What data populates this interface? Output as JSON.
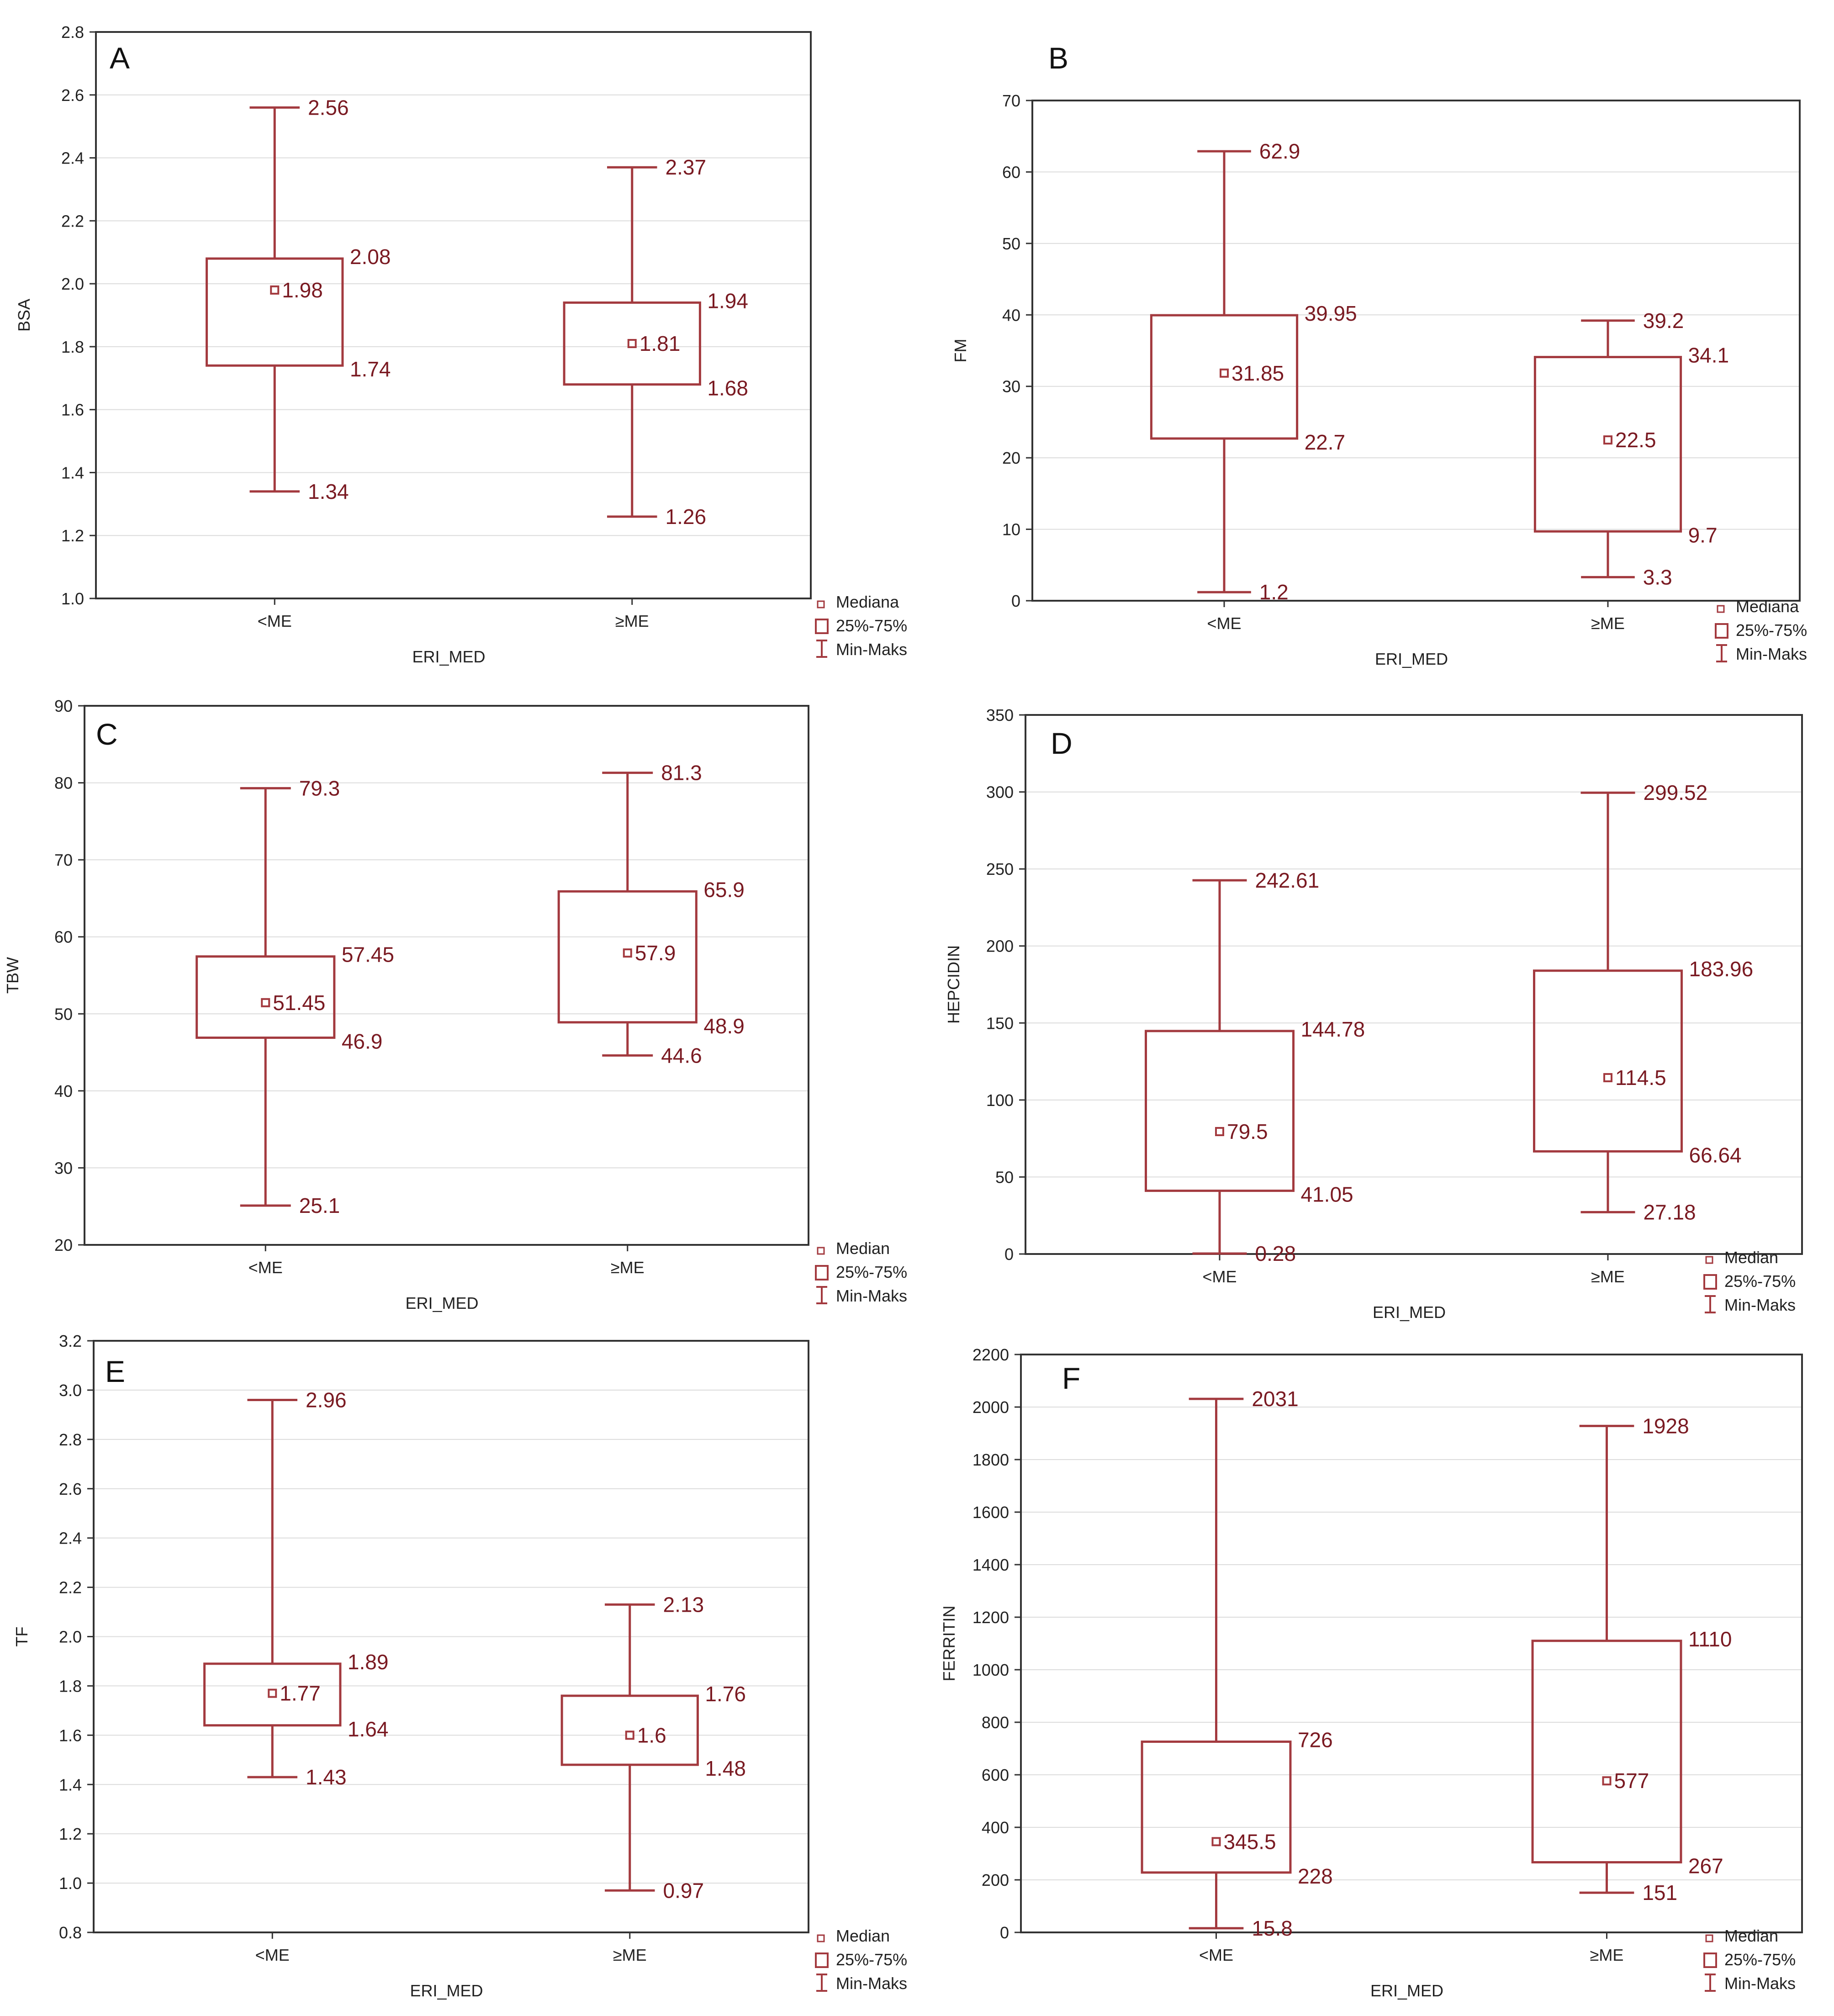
{
  "colors": {
    "box": "#a33a3f",
    "label": "#7a1a22",
    "grid": "#dcdcdc",
    "frame": "#333333"
  },
  "chart_data": [
    {
      "type": "box",
      "panel": "A",
      "xlabel": "ERI_MED",
      "ylabel": "BSA",
      "ylim": [
        1.0,
        2.8
      ],
      "yticks": [
        "1.0",
        "1.2",
        "1.4",
        "1.6",
        "1.8",
        "2.0",
        "2.2",
        "2.4",
        "2.6",
        "2.8"
      ],
      "categories": [
        "<ME",
        "≥ME"
      ],
      "boxes": [
        {
          "min": 1.34,
          "q1": 1.74,
          "median": 1.98,
          "q3": 2.08,
          "max": 2.56,
          "labels": {
            "min": "1.34",
            "q1": "1.74",
            "median": "1.98",
            "q3": "2.08",
            "max": "2.56"
          }
        },
        {
          "min": 1.26,
          "q1": 1.68,
          "median": 1.81,
          "q3": 1.94,
          "max": 2.37,
          "labels": {
            "min": "1.26",
            "q1": "1.68",
            "median": "1.81",
            "q3": "1.94",
            "max": "2.37"
          }
        }
      ],
      "legend": [
        "Mediana",
        "25%-75%",
        "Min-Maks"
      ]
    },
    {
      "type": "box",
      "panel": "B",
      "xlabel": "ERI_MED",
      "ylabel": "FM",
      "ylim": [
        0,
        70
      ],
      "yticks": [
        "0",
        "10",
        "20",
        "30",
        "40",
        "50",
        "60",
        "70"
      ],
      "categories": [
        "<ME",
        "≥ME"
      ],
      "boxes": [
        {
          "min": 1.2,
          "q1": 22.7,
          "median": 31.85,
          "q3": 39.95,
          "max": 62.9,
          "labels": {
            "min": "1.2",
            "q1": "22.7",
            "median": "31.85",
            "q3": "39.95",
            "max": "62.9"
          }
        },
        {
          "min": 3.3,
          "q1": 9.7,
          "median": 22.5,
          "q3": 34.1,
          "max": 39.2,
          "labels": {
            "min": "3.3",
            "q1": "9.7",
            "median": "22.5",
            "q3": "34.1",
            "max": "39.2"
          }
        }
      ],
      "legend": [
        "Mediana",
        "25%-75%",
        "Min-Maks"
      ]
    },
    {
      "type": "box",
      "panel": "C",
      "xlabel": "ERI_MED",
      "ylabel": "TBW",
      "ylim": [
        20,
        90
      ],
      "yticks": [
        "20",
        "30",
        "40",
        "50",
        "60",
        "70",
        "80",
        "90"
      ],
      "categories": [
        "<ME",
        "≥ME"
      ],
      "boxes": [
        {
          "min": 25.1,
          "q1": 46.9,
          "median": 51.45,
          "q3": 57.45,
          "max": 79.3,
          "labels": {
            "min": "25.1",
            "q1": "46.9",
            "median": "51.45",
            "q3": "57.45",
            "max": "79.3"
          }
        },
        {
          "min": 44.6,
          "q1": 48.9,
          "median": 57.9,
          "q3": 65.9,
          "max": 81.3,
          "labels": {
            "min": "44.6",
            "q1": "48.9",
            "median": "57.9",
            "q3": "65.9",
            "max": "81.3"
          }
        }
      ],
      "legend": [
        "Median",
        "25%-75%",
        "Min-Maks"
      ]
    },
    {
      "type": "box",
      "panel": "D",
      "xlabel": "ERI_MED",
      "ylabel": "HEPCIDIN",
      "ylim": [
        0,
        350
      ],
      "yticks": [
        "0",
        "50",
        "100",
        "150",
        "200",
        "250",
        "300",
        "350"
      ],
      "categories": [
        "<ME",
        "≥ME"
      ],
      "boxes": [
        {
          "min": 0.28,
          "q1": 41.05,
          "median": 79.5,
          "q3": 144.78,
          "max": 242.61,
          "labels": {
            "min": "0.28",
            "q1": "41.05",
            "median": "79.5",
            "q3": "144.78",
            "max": "242.61"
          }
        },
        {
          "min": 27.18,
          "q1": 66.64,
          "median": 114.5,
          "q3": 183.96,
          "max": 299.52,
          "labels": {
            "min": "27.18",
            "q1": "66.64",
            "median": "114.5",
            "q3": "183.96",
            "max": "299.52"
          }
        }
      ],
      "legend": [
        "Median",
        "25%-75%",
        "Min-Maks"
      ]
    },
    {
      "type": "box",
      "panel": "E",
      "xlabel": "ERI_MED",
      "ylabel": "TF",
      "ylim": [
        0.8,
        3.2
      ],
      "yticks": [
        "0.8",
        "1.0",
        "1.2",
        "1.4",
        "1.6",
        "1.8",
        "2.0",
        "2.2",
        "2.4",
        "2.6",
        "2.8",
        "3.0",
        "3.2"
      ],
      "categories": [
        "<ME",
        "≥ME"
      ],
      "boxes": [
        {
          "min": 1.43,
          "q1": 1.64,
          "median": 1.77,
          "q3": 1.89,
          "max": 2.96,
          "labels": {
            "min": "1.43",
            "q1": "1.64",
            "median": "1.77",
            "q3": "1.89",
            "max": "2.96"
          }
        },
        {
          "min": 0.97,
          "q1": 1.48,
          "median": 1.6,
          "q3": 1.76,
          "max": 2.13,
          "labels": {
            "min": "0.97",
            "q1": "1.48",
            "median": "1.6",
            "q3": "1.76",
            "max": "2.13"
          }
        }
      ],
      "legend": [
        "Median",
        "25%-75%",
        "Min-Maks"
      ]
    },
    {
      "type": "box",
      "panel": "F",
      "xlabel": "ERI_MED",
      "ylabel": "FERRITIN",
      "ylim": [
        0,
        2200
      ],
      "yticks": [
        "0",
        "200",
        "400",
        "600",
        "800",
        "1000",
        "1200",
        "1400",
        "1600",
        "1800",
        "2000",
        "2200"
      ],
      "categories": [
        "<ME",
        "≥ME"
      ],
      "boxes": [
        {
          "min": 15.8,
          "q1": 228,
          "median": 345.5,
          "q3": 726,
          "max": 2031,
          "labels": {
            "min": "15.8",
            "q1": "228",
            "median": "345.5",
            "q3": "726",
            "max": "2031"
          }
        },
        {
          "min": 151,
          "q1": 267,
          "median": 577,
          "q3": 1110,
          "max": 1928,
          "labels": {
            "min": "151",
            "q1": "267",
            "median": "577",
            "q3": "1110",
            "max": "1928"
          }
        }
      ],
      "legend": [
        "Median",
        "25%-75%",
        "Min-Maks"
      ]
    }
  ]
}
